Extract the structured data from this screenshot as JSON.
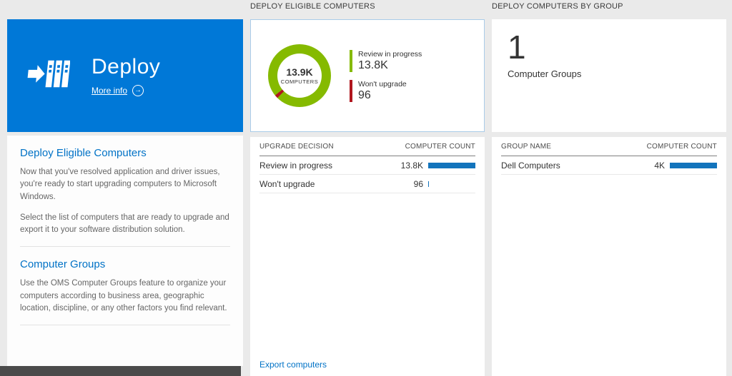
{
  "colors": {
    "bar": "#1374bc",
    "tile_blue": "#0078d7",
    "link": "#0072c6"
  },
  "left": {
    "tile": {
      "title": "Deploy",
      "more_info_label": "More info",
      "more_info_icon": "→"
    },
    "sections": [
      {
        "heading": "Deploy Eligible Computers",
        "p1": "Now that you've resolved application and driver issues, you're ready to start upgrading computers to Microsoft Windows.",
        "p2": "Select the list of computers that are ready to upgrade and export it to your software distribution solution."
      },
      {
        "heading": "Computer Groups",
        "p1": "Use the OMS Computer Groups feature to organize your computers according to business area, geographic location, discipline, or any other factors you find relevant."
      }
    ]
  },
  "middle": {
    "header": "DEPLOY ELIGIBLE COMPUTERS",
    "donut": {
      "center_value": "13.9K",
      "center_label": "COMPUTERS",
      "start_deg": 225,
      "segments": [
        {
          "color": "#b0171f",
          "deg": 6
        },
        {
          "color": "#85ba00",
          "deg": 354
        }
      ],
      "legend": [
        {
          "label": "Review in progress",
          "value": "13.8K",
          "color": "#85ba00"
        },
        {
          "label": "Won't upgrade",
          "value": "96",
          "color": "#b0171f"
        }
      ]
    },
    "table": {
      "col1": "UPGRADE DECISION",
      "col2": "COMPUTER COUNT",
      "rows": [
        {
          "label": "Review in progress",
          "value": "13.8K",
          "bar_pct": 100
        },
        {
          "label": "Won't upgrade",
          "value": "96",
          "bar_pct": 2
        }
      ]
    },
    "footer_link": "Export computers"
  },
  "right": {
    "header": "DEPLOY COMPUTERS BY GROUP",
    "count": "1",
    "count_label": "Computer Groups",
    "table": {
      "col1": "GROUP NAME",
      "col2": "COMPUTER COUNT",
      "rows": [
        {
          "label": "Dell Computers",
          "value": "4K",
          "bar_pct": 100
        }
      ]
    }
  }
}
